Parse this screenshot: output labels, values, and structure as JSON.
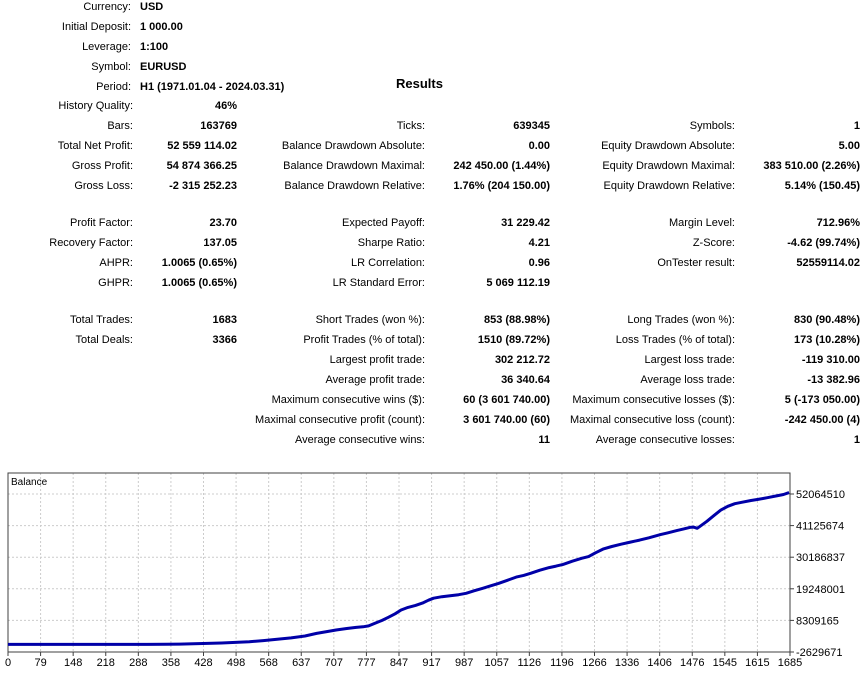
{
  "header": {
    "info": [
      {
        "label": "Currency:",
        "value": "USD"
      },
      {
        "label": "Initial Deposit:",
        "value": "1 000.00"
      },
      {
        "label": "Leverage:",
        "value": "1:100"
      },
      {
        "label": "Symbol:",
        "value": "EURUSD"
      },
      {
        "label": "Period:",
        "value": "H1 (1971.01.04 - 2024.03.31)"
      }
    ],
    "results_title": "Results"
  },
  "stats_blocks": [
    {
      "rows": [
        [
          {
            "label": "History Quality:",
            "value": "46%"
          },
          null,
          null
        ],
        [
          {
            "label": "Bars:",
            "value": "163769"
          },
          {
            "label": "Ticks:",
            "value": "639345"
          },
          {
            "label": "Symbols:",
            "value": "1"
          }
        ],
        [
          {
            "label": "Total Net Profit:",
            "value": "52 559 114.02"
          },
          {
            "label": "Balance Drawdown Absolute:",
            "value": "0.00"
          },
          {
            "label": "Equity Drawdown Absolute:",
            "value": "5.00"
          }
        ],
        [
          {
            "label": "Gross Profit:",
            "value": "54 874 366.25"
          },
          {
            "label": "Balance Drawdown Maximal:",
            "value": "242 450.00 (1.44%)"
          },
          {
            "label": "Equity Drawdown Maximal:",
            "value": "383 510.00 (2.26%)"
          }
        ],
        [
          {
            "label": "Gross Loss:",
            "value": "-2 315 252.23"
          },
          {
            "label": "Balance Drawdown Relative:",
            "value": "1.76% (204 150.00)"
          },
          {
            "label": "Equity Drawdown Relative:",
            "value": "5.14% (150.45)"
          }
        ]
      ]
    },
    {
      "rows": [
        [
          {
            "label": "Profit Factor:",
            "value": "23.70"
          },
          {
            "label": "Expected Payoff:",
            "value": "31 229.42"
          },
          {
            "label": "Margin Level:",
            "value": "712.96%"
          }
        ],
        [
          {
            "label": "Recovery Factor:",
            "value": "137.05"
          },
          {
            "label": "Sharpe Ratio:",
            "value": "4.21"
          },
          {
            "label": "Z-Score:",
            "value": "-4.62 (99.74%)"
          }
        ],
        [
          {
            "label": "AHPR:",
            "value": "1.0065 (0.65%)"
          },
          {
            "label": "LR Correlation:",
            "value": "0.96"
          },
          {
            "label": "OnTester result:",
            "value": "52559114.02"
          }
        ],
        [
          {
            "label": "GHPR:",
            "value": "1.0065 (0.65%)"
          },
          {
            "label": "LR Standard Error:",
            "value": "5 069 112.19"
          },
          null
        ]
      ]
    },
    {
      "rows": [
        [
          {
            "label": "Total Trades:",
            "value": "1683"
          },
          {
            "label": "Short Trades (won %):",
            "value": "853 (88.98%)"
          },
          {
            "label": "Long Trades (won %):",
            "value": "830 (90.48%)"
          }
        ],
        [
          {
            "label": "Total Deals:",
            "value": "3366"
          },
          {
            "label": "Profit Trades (% of total):",
            "value": "1510 (89.72%)"
          },
          {
            "label": "Loss Trades (% of total):",
            "value": "173 (10.28%)"
          }
        ],
        [
          null,
          {
            "label": "Largest profit trade:",
            "value": "302 212.72"
          },
          {
            "label": "Largest loss trade:",
            "value": "-119 310.00"
          }
        ],
        [
          null,
          {
            "label": "Average profit trade:",
            "value": "36 340.64"
          },
          {
            "label": "Average loss trade:",
            "value": "-13 382.96"
          }
        ],
        [
          null,
          {
            "label": "Maximum consecutive wins ($):",
            "value": "60 (3 601 740.00)"
          },
          {
            "label": "Maximum consecutive losses ($):",
            "value": "5 (-173 050.00)"
          }
        ],
        [
          null,
          {
            "label": "Maximal consecutive profit (count):",
            "value": "3 601 740.00 (60)"
          },
          {
            "label": "Maximal consecutive loss (count):",
            "value": "-242 450.00 (4)"
          }
        ],
        [
          null,
          {
            "label": "Average consecutive wins:",
            "value": "11"
          },
          {
            "label": "Average consecutive losses:",
            "value": "1"
          }
        ]
      ]
    }
  ],
  "chart_data": {
    "type": "line",
    "title": "Balance",
    "xlabel": "",
    "ylabel": "",
    "legend_position": "none",
    "grid": "dashed",
    "line_color": "#0000a8",
    "grid_color": "#cccccc",
    "frame_color": "#404040",
    "x_range": [
      0,
      1685
    ],
    "y_range": [
      -2629671,
      52064510
    ],
    "x_ticks": [
      0,
      79,
      148,
      218,
      288,
      358,
      428,
      498,
      568,
      637,
      707,
      777,
      847,
      917,
      987,
      1057,
      1126,
      1196,
      1266,
      1336,
      1406,
      1476,
      1545,
      1615,
      1685
    ],
    "y_ticks": [
      52064510,
      41125674,
      30186837,
      19248001,
      8309165,
      -2629671
    ],
    "series": [
      {
        "name": "Balance",
        "points": [
          [
            0,
            1000
          ],
          [
            80,
            1000
          ],
          [
            160,
            1500
          ],
          [
            240,
            2500
          ],
          [
            300,
            5000
          ],
          [
            340,
            20000
          ],
          [
            370,
            90000
          ],
          [
            400,
            250000
          ],
          [
            430,
            350000
          ],
          [
            460,
            500000
          ],
          [
            490,
            700000
          ],
          [
            520,
            950000
          ],
          [
            550,
            1300000
          ],
          [
            580,
            1750000
          ],
          [
            610,
            2250000
          ],
          [
            640,
            2900000
          ],
          [
            665,
            3800000
          ],
          [
            690,
            4500000
          ],
          [
            707,
            5000000
          ],
          [
            730,
            5500000
          ],
          [
            750,
            5900000
          ],
          [
            765,
            6100000
          ],
          [
            777,
            6400000
          ],
          [
            792,
            7400000
          ],
          [
            806,
            8300000
          ],
          [
            820,
            9400000
          ],
          [
            834,
            10600000
          ],
          [
            847,
            11900000
          ],
          [
            862,
            12800000
          ],
          [
            878,
            13500000
          ],
          [
            893,
            14300000
          ],
          [
            906,
            15300000
          ],
          [
            917,
            16000000
          ],
          [
            935,
            16500000
          ],
          [
            955,
            16900000
          ],
          [
            971,
            17200000
          ],
          [
            987,
            17700000
          ],
          [
            1005,
            18600000
          ],
          [
            1022,
            19400000
          ],
          [
            1040,
            20300000
          ],
          [
            1057,
            21100000
          ],
          [
            1076,
            22200000
          ],
          [
            1095,
            23300000
          ],
          [
            1111,
            23900000
          ],
          [
            1126,
            24600000
          ],
          [
            1146,
            25700000
          ],
          [
            1166,
            26600000
          ],
          [
            1181,
            27100000
          ],
          [
            1196,
            27700000
          ],
          [
            1216,
            28800000
          ],
          [
            1236,
            29800000
          ],
          [
            1251,
            30400000
          ],
          [
            1266,
            31700000
          ],
          [
            1282,
            33000000
          ],
          [
            1301,
            33900000
          ],
          [
            1321,
            34700000
          ],
          [
            1341,
            35400000
          ],
          [
            1361,
            36100000
          ],
          [
            1381,
            36900000
          ],
          [
            1406,
            38000000
          ],
          [
            1421,
            38600000
          ],
          [
            1441,
            39400000
          ],
          [
            1456,
            40000000
          ],
          [
            1469,
            40500000
          ],
          [
            1477,
            40600000
          ],
          [
            1485,
            40200000
          ],
          [
            1493,
            41100000
          ],
          [
            1506,
            42600000
          ],
          [
            1521,
            44600000
          ],
          [
            1536,
            46500000
          ],
          [
            1551,
            47800000
          ],
          [
            1566,
            48700000
          ],
          [
            1581,
            49200000
          ],
          [
            1601,
            49800000
          ],
          [
            1616,
            50200000
          ],
          [
            1636,
            50800000
          ],
          [
            1656,
            51400000
          ],
          [
            1671,
            51900000
          ],
          [
            1683,
            52560114
          ]
        ]
      }
    ]
  }
}
